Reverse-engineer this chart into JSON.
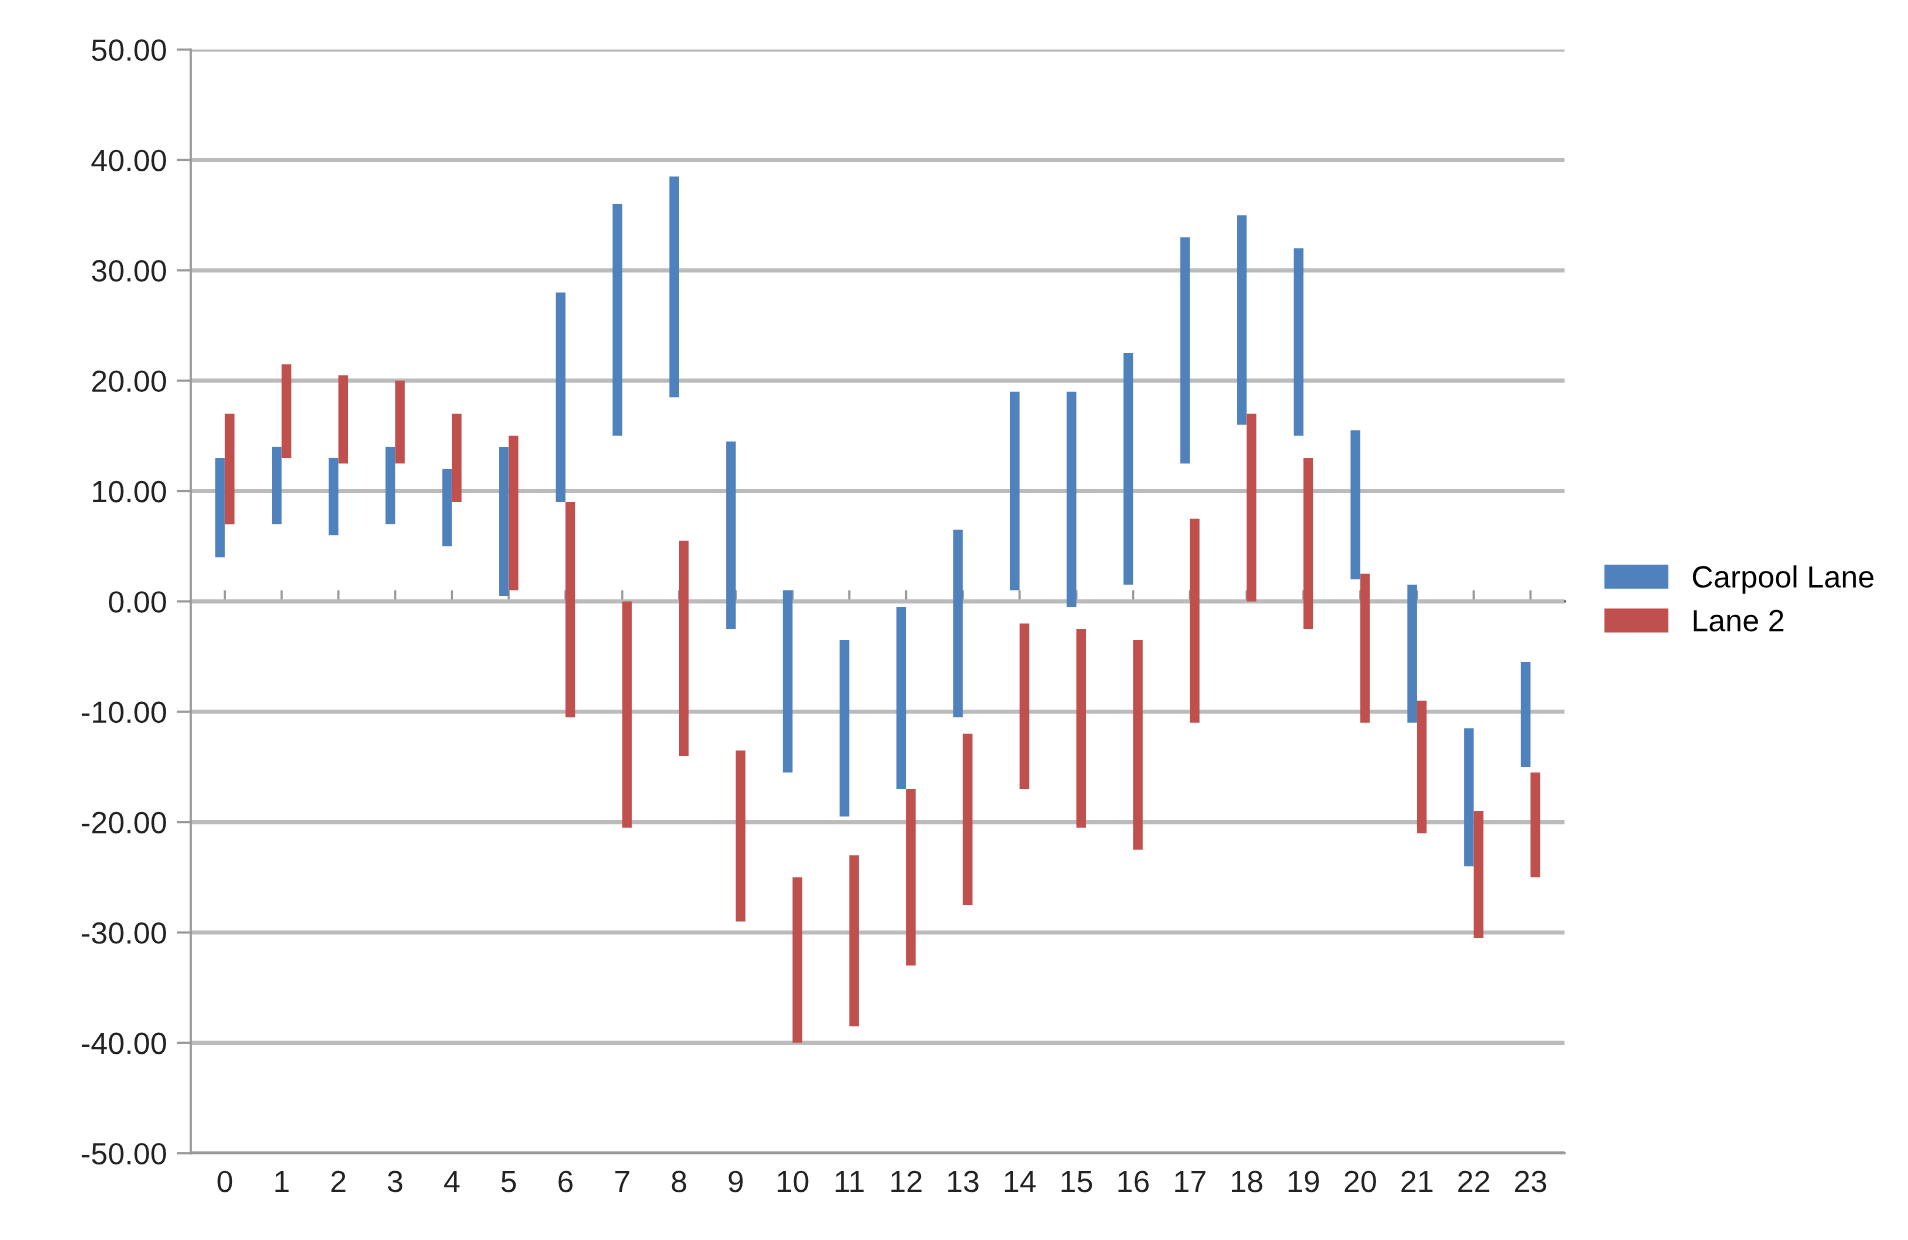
{
  "chart_data": {
    "type": "bar",
    "categories": [
      "0",
      "1",
      "2",
      "3",
      "4",
      "5",
      "6",
      "7",
      "8",
      "9",
      "10",
      "11",
      "12",
      "13",
      "14",
      "15",
      "16",
      "17",
      "18",
      "19",
      "20",
      "21",
      "22",
      "23"
    ],
    "series": [
      {
        "name": "Carpool Lane",
        "color": "#4f81bd",
        "base": [
          4,
          7,
          6,
          7,
          5,
          0.5,
          9,
          15,
          18.5,
          -2.5,
          -15.5,
          -19.5,
          -17,
          -10.5,
          1,
          -0.5,
          1.5,
          12.5,
          16,
          15,
          2,
          -11,
          -24,
          -15
        ],
        "values": [
          9,
          7,
          7,
          7,
          7,
          13.5,
          19,
          21,
          20,
          17,
          16.5,
          16,
          16.5,
          17,
          18,
          19.5,
          21,
          20.5,
          19,
          17,
          13.5,
          12.5,
          12.5,
          9.5
        ]
      },
      {
        "name": "Lane 2",
        "color": "#c0504d",
        "base": [
          7,
          13,
          12.5,
          12.5,
          9,
          1,
          -10.5,
          -20.5,
          -14,
          -29,
          -40,
          -38.5,
          -33,
          -27.5,
          -17,
          -20.5,
          -22.5,
          -11,
          0,
          -2.5,
          -11,
          -21,
          -30.5,
          -25
        ],
        "values": [
          10,
          8.5,
          8,
          7.5,
          8,
          14,
          19.5,
          20.5,
          19.5,
          15.5,
          15,
          15.5,
          16,
          15.5,
          15,
          18,
          19,
          18.5,
          17,
          15.5,
          13.5,
          12,
          11.5,
          9.5
        ]
      }
    ],
    "ylim": [
      -50,
      50
    ],
    "yticks": [
      {
        "value": -50,
        "label": "-50.00"
      },
      {
        "value": -40,
        "label": "-40.00"
      },
      {
        "value": -30,
        "label": "-30.00"
      },
      {
        "value": -20,
        "label": "-20.00"
      },
      {
        "value": -10,
        "label": "-10.00"
      },
      {
        "value": 0,
        "label": "0.00"
      },
      {
        "value": 10,
        "label": "10.00"
      },
      {
        "value": 20,
        "label": "20.00"
      },
      {
        "value": 30,
        "label": "30.00"
      },
      {
        "value": 40,
        "label": "40.00"
      },
      {
        "value": 50,
        "label": "50.00"
      }
    ],
    "grid": "y",
    "legend": "right"
  }
}
